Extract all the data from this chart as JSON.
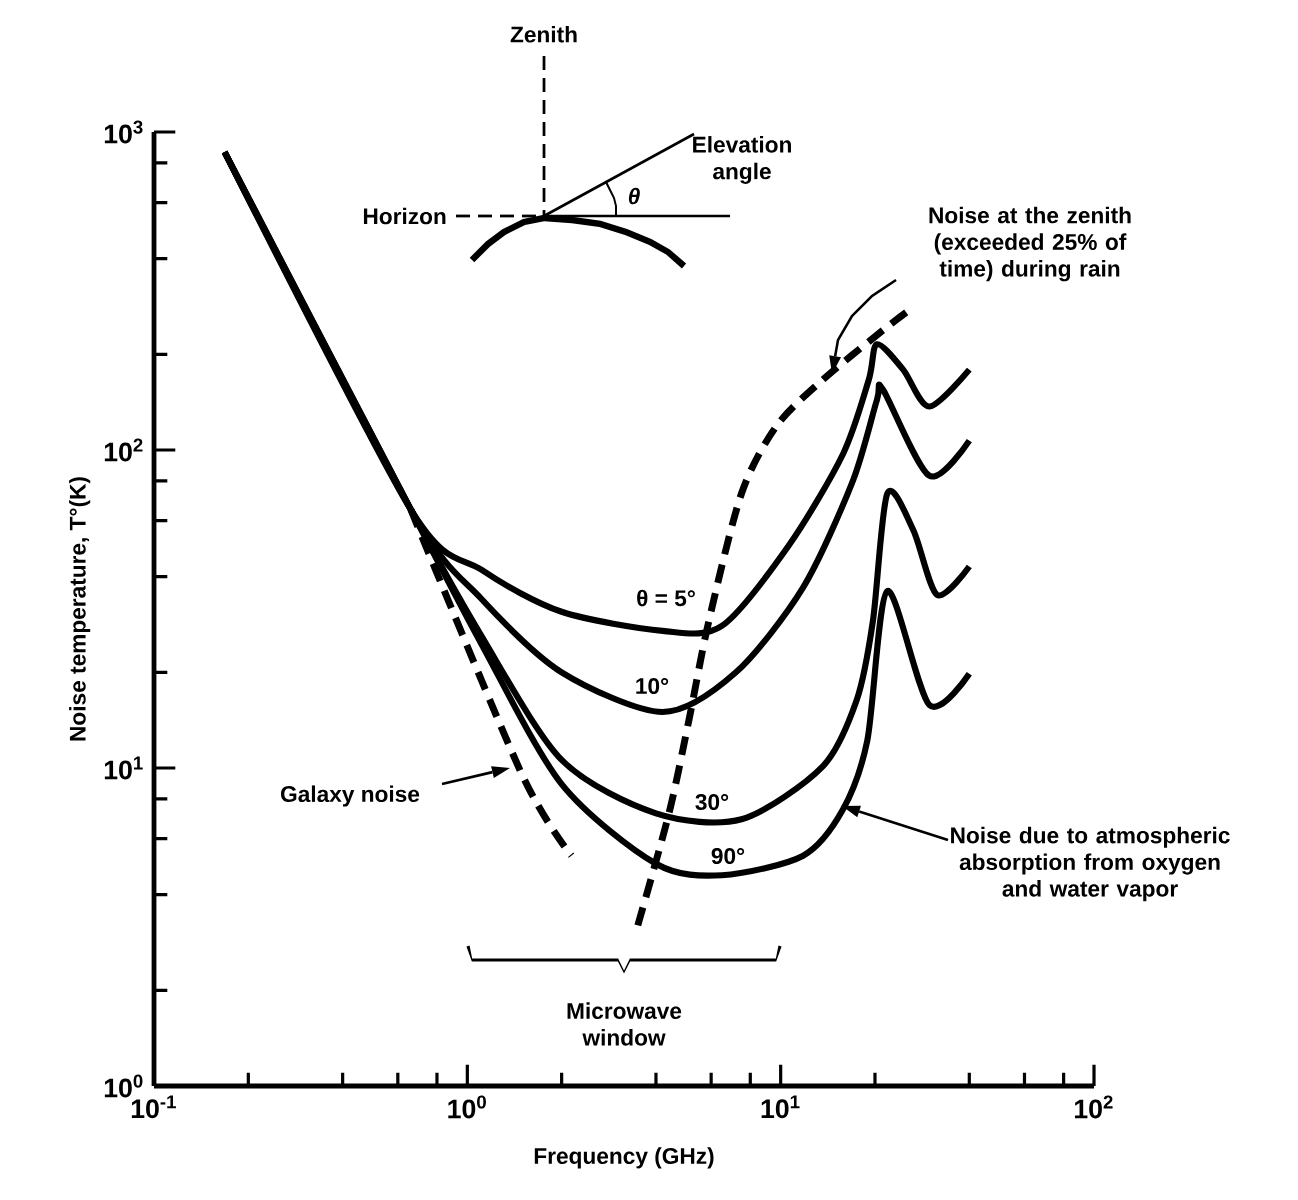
{
  "chart_data": {
    "type": "line",
    "xlabel": "Frequency (GHz)",
    "ylabel": "Noise temperature, T°(K)",
    "log": "xy",
    "xlim": [
      0.1,
      100
    ],
    "ylim": [
      1,
      1000
    ],
    "xticks": [
      {
        "value": 0.1,
        "label": "10$^{-1}$"
      },
      {
        "value": 1,
        "label": "10$^{0}$"
      },
      {
        "value": 10,
        "label": "10$^{1}$"
      },
      {
        "value": 100,
        "label": "10$^{2}$"
      }
    ],
    "yticks": [
      {
        "value": 1,
        "label": "10$^{0}$"
      },
      {
        "value": 10,
        "label": "10$^{1}$"
      },
      {
        "value": 100,
        "label": "10$^{2}$"
      },
      {
        "value": 1000,
        "label": "10$^{3}$"
      }
    ],
    "grid": false,
    "legend": false,
    "marker": "none",
    "series": [
      {
        "name": "θ = 5°",
        "color": "#000000",
        "line_style": "solid",
        "x": [
          0.168,
          0.66,
          1.11,
          2.0,
          4.2,
          6.5,
          10.6,
          15.8,
          19.1,
          20.3,
          24.6,
          29.8,
          40
        ],
        "values": [
          865,
          65,
          42,
          31,
          27,
          28,
          50,
          97,
          166,
          215,
          179,
          137,
          179
        ]
      },
      {
        "name": "10°",
        "color": "#000000",
        "line_style": "solid",
        "x": [
          0.168,
          0.66,
          1.11,
          2.0,
          4.2,
          7.2,
          11.8,
          17,
          20.3,
          21.2,
          29.8,
          40
        ],
        "values": [
          865,
          65,
          34,
          20,
          15,
          20,
          37,
          80,
          144,
          155,
          83,
          107
        ]
      },
      {
        "name": "30°",
        "color": "#000000",
        "line_style": "solid",
        "x": [
          0.168,
          0.66,
          1.11,
          2.0,
          4.0,
          7.5,
          13.6,
          17.5,
          19.7,
          21.9,
          26.5,
          31.6,
          40
        ],
        "values": [
          865,
          65,
          26,
          10.6,
          7.2,
          6.9,
          10.1,
          16.4,
          29,
          73,
          56,
          35,
          43
        ]
      },
      {
        "name": "90°",
        "color": "#000000",
        "line_style": "solid",
        "x": [
          0.168,
          0.66,
          1.11,
          2.0,
          4.0,
          6.5,
          11.8,
          15.8,
          18.9,
          21.9,
          29.8,
          40
        ],
        "values": [
          865,
          65,
          24.5,
          8.9,
          5.0,
          4.6,
          5.3,
          7.4,
          12.2,
          36,
          15.8,
          19.8
        ]
      },
      {
        "name": "Galaxy noise",
        "color": "#000000",
        "line_style": "dashed",
        "x": [
          0.66,
          1.49,
          2.15
        ],
        "values": [
          65,
          9.6,
          5.3
        ]
      },
      {
        "name": "Noise at the zenith (exceeded 25% of time) during rain",
        "color": "#000000",
        "line_style": "dashed",
        "x": [
          3.5,
          4.4,
          5.1,
          5.9,
          7.5,
          9.7,
          13.6,
          21.2,
          25.7
        ],
        "values": [
          3.2,
          7.2,
          14.2,
          29,
          73,
          119,
          166,
          238,
          275
        ]
      }
    ],
    "annotations": [
      "Zenith",
      "Horizon",
      "Elevation angle",
      "θ",
      "Noise due to atmospheric absorption from oxygen and water vapor",
      "Microwave window"
    ]
  }
}
